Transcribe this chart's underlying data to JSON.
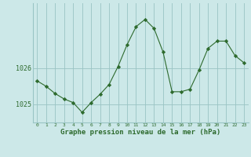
{
  "x": [
    0,
    1,
    2,
    3,
    4,
    5,
    6,
    7,
    8,
    9,
    10,
    11,
    12,
    13,
    14,
    15,
    16,
    17,
    18,
    19,
    20,
    21,
    22,
    23
  ],
  "y": [
    1025.65,
    1025.5,
    1025.3,
    1025.15,
    1025.05,
    1024.78,
    1025.05,
    1025.28,
    1025.55,
    1026.05,
    1026.65,
    1027.15,
    1027.35,
    1027.1,
    1026.45,
    1025.35,
    1025.35,
    1025.42,
    1025.95,
    1026.55,
    1026.75,
    1026.75,
    1026.35,
    1026.15
  ],
  "line_color": "#2d6a2d",
  "marker": "D",
  "marker_size": 2.2,
  "bg_color": "#cce8e8",
  "grid_color": "#99c4c4",
  "xlabel": "Graphe pression niveau de la mer (hPa)",
  "xlabel_color": "#2d6a2d",
  "tick_color": "#2d6a2d",
  "yticks": [
    1025,
    1026
  ],
  "ylim": [
    1024.5,
    1027.8
  ],
  "xlim": [
    -0.5,
    23.5
  ],
  "figsize": [
    3.2,
    2.0
  ],
  "dpi": 100
}
